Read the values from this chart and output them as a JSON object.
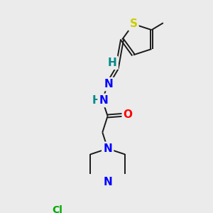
{
  "bg_color": "#ebebeb",
  "bond_color": "#1a1a1a",
  "atoms": {
    "S": {
      "color": "#cccc00",
      "fontsize": 11,
      "fontweight": "bold"
    },
    "N": {
      "color": "#0000ff",
      "fontsize": 11,
      "fontweight": "bold"
    },
    "O": {
      "color": "#ff0000",
      "fontsize": 11,
      "fontweight": "bold"
    },
    "Cl": {
      "color": "#00aa00",
      "fontsize": 10,
      "fontweight": "bold"
    },
    "H": {
      "color": "#008888",
      "fontsize": 11,
      "fontweight": "bold"
    }
  },
  "lw": 1.4,
  "dbo": 0.008
}
